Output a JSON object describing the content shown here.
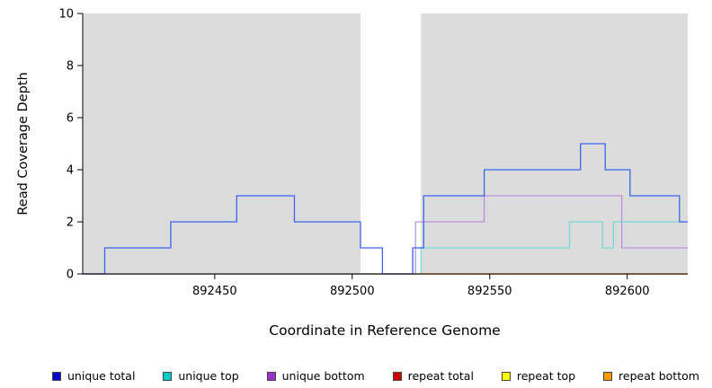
{
  "chart_data": {
    "type": "line",
    "title": "",
    "xlabel": "Coordinate in Reference Genome",
    "ylabel": "Read Coverage Depth",
    "xlim": [
      892402,
      892622
    ],
    "ylim": [
      0,
      10
    ],
    "xticks": [
      892450,
      892500,
      892550,
      892600
    ],
    "yticks": [
      0,
      2,
      4,
      6,
      8,
      10
    ],
    "grid": false,
    "legend_position": "bottom",
    "shaded_color": "#dcdcdc",
    "shaded_regions": [
      {
        "x0": 892402,
        "x1": 892503
      },
      {
        "x0": 892525,
        "x1": 892622
      }
    ],
    "series": [
      {
        "name": "repeat top",
        "color": "#eeee55",
        "points": [
          [
            892402,
            0
          ],
          [
            892622,
            0
          ]
        ]
      },
      {
        "name": "repeat total",
        "color": "#cc3333",
        "points": [
          [
            892402,
            0
          ],
          [
            892622,
            0
          ]
        ]
      },
      {
        "name": "repeat bottom",
        "color": "#ffaa33",
        "points": [
          [
            892503,
            0
          ],
          [
            892622,
            0
          ]
        ]
      },
      {
        "name": "unique bottom",
        "color": "#bb8fdd",
        "points": [
          [
            892402,
            0
          ],
          [
            892523,
            0
          ],
          [
            892523,
            2
          ],
          [
            892548,
            2
          ],
          [
            892548,
            3
          ],
          [
            892598,
            3
          ],
          [
            892598,
            1
          ],
          [
            892622,
            1
          ]
        ]
      },
      {
        "name": "unique top",
        "color": "#76d8d8",
        "points": [
          [
            892402,
            0
          ],
          [
            892525,
            0
          ],
          [
            892525,
            1
          ],
          [
            892579,
            1
          ],
          [
            892579,
            2
          ],
          [
            892591,
            2
          ],
          [
            892591,
            1
          ],
          [
            892595,
            1
          ],
          [
            892595,
            2
          ],
          [
            892622,
            2
          ]
        ]
      },
      {
        "name": "unique total",
        "color": "#3b63f0",
        "points": [
          [
            892402,
            0
          ],
          [
            892410,
            0
          ],
          [
            892410,
            1
          ],
          [
            892434,
            1
          ],
          [
            892434,
            2
          ],
          [
            892458,
            2
          ],
          [
            892458,
            3
          ],
          [
            892479,
            3
          ],
          [
            892479,
            2
          ],
          [
            892503,
            2
          ],
          [
            892503,
            1
          ],
          [
            892511,
            1
          ],
          [
            892511,
            0
          ],
          [
            892522,
            0
          ],
          [
            892522,
            1
          ],
          [
            892526,
            1
          ],
          [
            892526,
            3
          ],
          [
            892548,
            3
          ],
          [
            892548,
            4
          ],
          [
            892583,
            4
          ],
          [
            892583,
            5
          ],
          [
            892592,
            5
          ],
          [
            892592,
            4
          ],
          [
            892601,
            4
          ],
          [
            892601,
            3
          ],
          [
            892619,
            3
          ],
          [
            892619,
            2
          ],
          [
            892622,
            2
          ]
        ]
      }
    ]
  },
  "legend": {
    "items": [
      {
        "label": "unique total",
        "color": "#0000cc"
      },
      {
        "label": "unique top",
        "color": "#00cccc"
      },
      {
        "label": "unique bottom",
        "color": "#9933cc"
      },
      {
        "label": "repeat total",
        "color": "#cc0000"
      },
      {
        "label": "repeat top",
        "color": "#ffff00"
      },
      {
        "label": "repeat bottom",
        "color": "#ff9900"
      }
    ]
  }
}
